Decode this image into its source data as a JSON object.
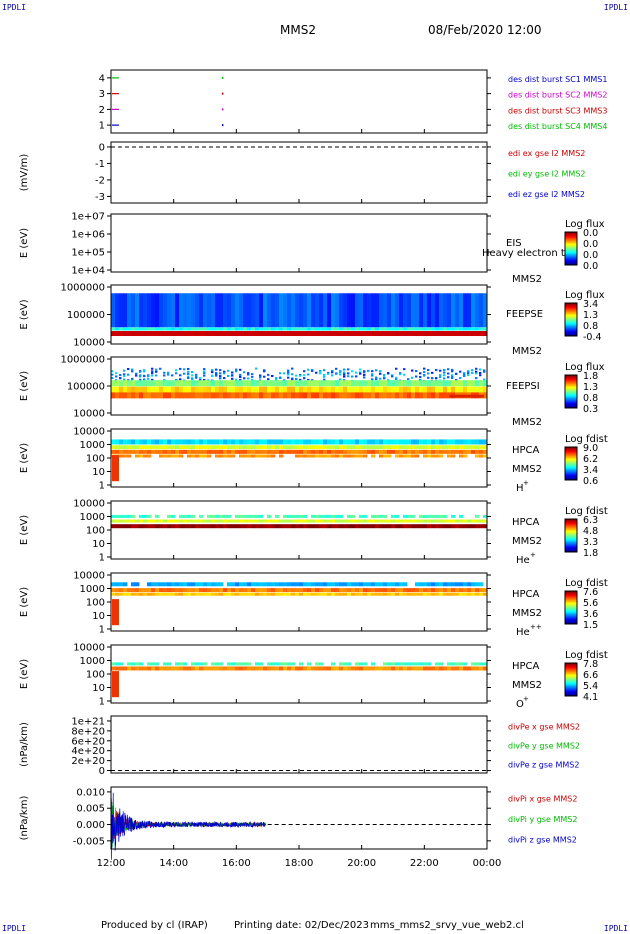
{
  "corners": {
    "label": "IPDLI"
  },
  "header": {
    "spacecraft": "MMS2",
    "datetime": "08/Feb/2020 12:00"
  },
  "footer": {
    "produced_by": "Produced by cl (IRAP)",
    "printing_date": "Printing date: 02/Dec/2023",
    "file": "mms_mms2_srvy_vue_web2.cl"
  },
  "chart_data": {
    "type": "heatmap",
    "x_ticks": [
      "12:00",
      "14:00",
      "16:00",
      "18:00",
      "20:00",
      "22:00",
      "00:00"
    ],
    "x_range_hours": [
      12,
      24
    ],
    "panels": [
      {
        "id": "burst",
        "type": "line",
        "y_ticks": [
          "1",
          "2",
          "3",
          "4"
        ],
        "ylim": [
          0.5,
          4.5
        ],
        "legend": [
          {
            "text": "des dist burst SC1 MMS1",
            "color": "#0000cc"
          },
          {
            "text": "des dist burst SC2 MMS2",
            "color": "#cc00cc"
          },
          {
            "text": "des dist burst SC3 MMS3",
            "color": "#cc0000"
          },
          {
            "text": "des dist burst SC4 MMS4",
            "color": "#00bb00"
          }
        ]
      },
      {
        "id": "edi",
        "type": "line",
        "ylabel": "(mV/m)",
        "y_ticks": [
          "0",
          "-1",
          "-2",
          "-3"
        ],
        "ylim": [
          -3.4,
          0.3
        ],
        "legend": [
          {
            "text": "edi ex gse l2 MMS2",
            "color": "#cc0000"
          },
          {
            "text": "edi ey gse l2 MMS2",
            "color": "#00bb00"
          },
          {
            "text": "edi ez gse l2 MMS2",
            "color": "#0000cc"
          }
        ]
      },
      {
        "id": "eis",
        "type": "heatmap",
        "ylabel": "E (eV)",
        "y_ticks": [
          "1e+07",
          "1e+06",
          "1e+05",
          "1e+04"
        ],
        "labels": [
          "EIS",
          "MMS2"
        ],
        "overlay_text": "Heavy electron to",
        "colorbar_title": "Log flux",
        "colorbar_ticks": [
          "0.0",
          "0.0",
          "0.0",
          "0.0"
        ]
      },
      {
        "id": "feepse",
        "type": "heatmap",
        "ylabel": "E (eV)",
        "y_ticks": [
          "1000000",
          "100000",
          "10000"
        ],
        "labels": [
          "FEEPSE",
          "MMS2"
        ],
        "colorbar_title": "Log flux",
        "colorbar_ticks": [
          "3.4",
          "1.3",
          "0.8",
          "-0.4"
        ]
      },
      {
        "id": "feepsi",
        "type": "heatmap",
        "ylabel": "E (eV)",
        "y_ticks": [
          "1000000",
          "100000",
          "10000"
        ],
        "labels": [
          "FEEPSI",
          "MMS2"
        ],
        "colorbar_title": "Log flux",
        "colorbar_ticks": [
          "1.8",
          "1.3",
          "0.8",
          "0.3"
        ]
      },
      {
        "id": "hpca_h",
        "type": "heatmap",
        "ylabel": "E (eV)",
        "y_ticks": [
          "10000",
          "1000",
          "100",
          "10",
          "1"
        ],
        "labels": [
          "HPCA",
          "MMS2"
        ],
        "species": "H",
        "species_sup": "+",
        "colorbar_title": "Log fdist",
        "colorbar_ticks": [
          "9.0",
          "6.2",
          "3.4",
          "0.6"
        ]
      },
      {
        "id": "hpca_he",
        "type": "heatmap",
        "ylabel": "E (eV)",
        "y_ticks": [
          "10000",
          "1000",
          "100",
          "10",
          "1"
        ],
        "labels": [
          "HPCA",
          "MMS2"
        ],
        "species": "He",
        "species_sup": "+",
        "colorbar_title": "Log fdist",
        "colorbar_ticks": [
          "6.3",
          "4.8",
          "3.3",
          "1.8"
        ]
      },
      {
        "id": "hpca_hepp",
        "type": "heatmap",
        "ylabel": "E (eV)",
        "y_ticks": [
          "10000",
          "1000",
          "100",
          "10",
          "1"
        ],
        "labels": [
          "HPCA",
          "MMS2"
        ],
        "species": "He",
        "species_sup": "++",
        "colorbar_title": "Log fdist",
        "colorbar_ticks": [
          "7.6",
          "5.6",
          "3.6",
          "1.5"
        ]
      },
      {
        "id": "hpca_o",
        "type": "heatmap",
        "ylabel": "E (eV)",
        "y_ticks": [
          "10000",
          "1000",
          "100",
          "10",
          "1"
        ],
        "labels": [
          "HPCA",
          "MMS2"
        ],
        "species": "O",
        "species_sup": "+",
        "colorbar_title": "Log fdist",
        "colorbar_ticks": [
          "7.8",
          "6.6",
          "5.4",
          "4.1"
        ]
      },
      {
        "id": "divpe",
        "type": "line",
        "ylabel": "(nPa/km)",
        "y_ticks": [
          "1e+21",
          "8e+20",
          "6e+20",
          "4e+20",
          "2e+20",
          "0"
        ],
        "ylim": [
          -5e+19,
          1.1e+21
        ],
        "legend": [
          {
            "text": "divPe x gse MMS2",
            "color": "#cc0000"
          },
          {
            "text": "divPe y gse MMS2",
            "color": "#00bb00"
          },
          {
            "text": "divPe z gse MMS2",
            "color": "#0000cc"
          }
        ]
      },
      {
        "id": "divpi",
        "type": "line",
        "ylabel": "(nPa/km)",
        "y_ticks": [
          "0.010",
          "0.005",
          "0.000",
          "-0.005"
        ],
        "ylim": [
          -0.0075,
          0.0115
        ],
        "legend": [
          {
            "text": "divPi x gse MMS2",
            "color": "#cc0000"
          },
          {
            "text": "divPi y gse MMS2",
            "color": "#00bb00"
          },
          {
            "text": "divPi z gse MMS2",
            "color": "#0000cc"
          }
        ]
      }
    ]
  }
}
